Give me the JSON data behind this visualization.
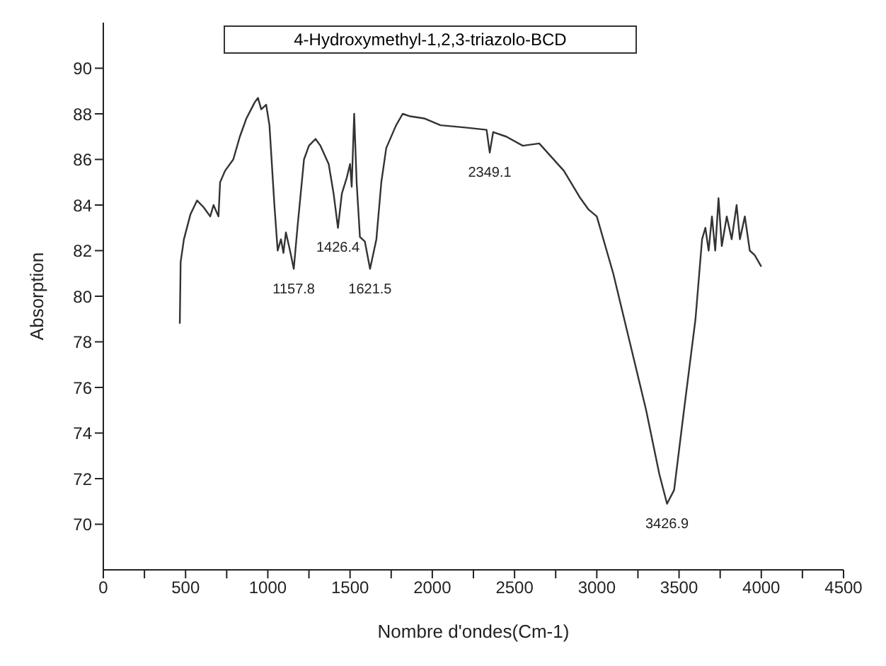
{
  "chart_data": {
    "type": "line",
    "title": "4-Hydroxymethyl-1,2,3-triazolo-BCD",
    "xlabel": "Nombre d'ondes(Cm-1)",
    "ylabel": "Absorption",
    "xlim": [
      0,
      4500
    ],
    "xticks": [
      0,
      {
        "value": 250,
        "label": null
      },
      500,
      {
        "value": 750,
        "label": null
      },
      1000,
      {
        "value": 1250,
        "label": null
      },
      1500,
      {
        "value": 1750,
        "label": null
      },
      2000,
      {
        "value": 2250,
        "label": null
      },
      2500,
      {
        "value": 2750,
        "label": null
      },
      3000,
      {
        "value": 3250,
        "label": null
      },
      3500,
      {
        "value": 3750,
        "label": null
      },
      4000,
      {
        "value": 4250,
        "label": null
      },
      4500
    ],
    "ylim": [
      68,
      92
    ],
    "yticks": [
      70,
      72,
      74,
      76,
      78,
      80,
      82,
      84,
      86,
      88,
      90
    ],
    "grid": false,
    "legend": false,
    "marker": "none",
    "line_style": "solid",
    "series": [
      {
        "color": "#333333",
        "x": [
          465,
          470,
          490,
          530,
          570,
          610,
          650,
          670,
          700,
          710,
          740,
          790,
          830,
          870,
          920,
          940,
          960,
          990,
          1010,
          1040,
          1060,
          1080,
          1095,
          1110,
          1135,
          1157.8,
          1180,
          1220,
          1250,
          1290,
          1320,
          1370,
          1400,
          1426.4,
          1450,
          1480,
          1500,
          1510,
          1525,
          1540,
          1560,
          1590,
          1621.5,
          1660,
          1690,
          1720,
          1780,
          1820,
          1860,
          1950,
          2050,
          2200,
          2330,
          2349.1,
          2370,
          2450,
          2550,
          2650,
          2800,
          2900,
          2950,
          3000,
          3100,
          3200,
          3300,
          3380,
          3426.9,
          3470,
          3530,
          3600,
          3640,
          3660,
          3680,
          3700,
          3720,
          3740,
          3760,
          3790,
          3820,
          3850,
          3870,
          3900,
          3930,
          3960,
          4000
        ],
        "values": [
          78.8,
          81.5,
          82.5,
          83.6,
          84.2,
          83.9,
          83.5,
          84.0,
          83.5,
          85.0,
          85.5,
          86.0,
          87.0,
          87.8,
          88.5,
          88.7,
          88.2,
          88.4,
          87.5,
          84.0,
          82.0,
          82.5,
          81.9,
          82.8,
          82.0,
          81.2,
          83.0,
          86.0,
          86.6,
          86.9,
          86.6,
          85.8,
          84.5,
          83.0,
          84.5,
          85.2,
          85.8,
          84.8,
          88.0,
          85.0,
          82.6,
          82.4,
          81.2,
          82.5,
          85.0,
          86.5,
          87.5,
          88.0,
          87.9,
          87.8,
          87.5,
          87.4,
          87.3,
          86.3,
          87.2,
          87.0,
          86.6,
          86.7,
          85.5,
          84.3,
          83.8,
          83.5,
          81.0,
          78.0,
          75.0,
          72.2,
          70.9,
          71.5,
          75.0,
          79.0,
          82.5,
          83.0,
          82.0,
          83.5,
          82.0,
          84.3,
          82.2,
          83.5,
          82.5,
          84.0,
          82.5,
          83.5,
          82.0,
          81.8,
          81.3
        ]
      }
    ],
    "annotations": [
      {
        "text": "1157.8",
        "x": 1157.8,
        "y": 81.2
      },
      {
        "text": "1426.4",
        "x": 1426.4,
        "y": 83.0
      },
      {
        "text": "1621.5",
        "x": 1621.5,
        "y": 81.2
      },
      {
        "text": "2349.1",
        "x": 2349.1,
        "y": 86.3
      },
      {
        "text": "3426.9",
        "x": 3426.9,
        "y": 70.9
      }
    ]
  }
}
